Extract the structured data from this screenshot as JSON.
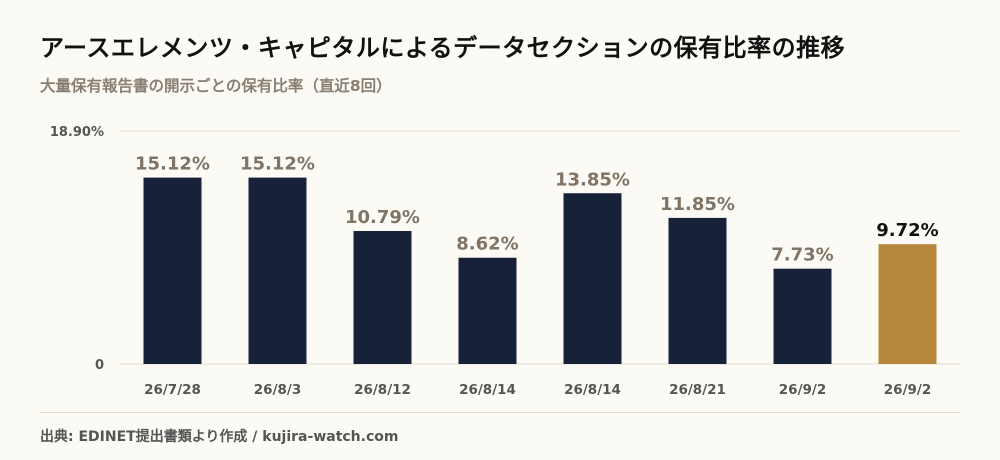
{
  "title": "アースエレメンツ・キャピタルによるデータセクションの保有比率の推移",
  "subtitle": "大量保有報告書の開示ごとの保有比率（直近8回）",
  "source": "出典: EDINET提出書類より作成 / kujira-watch.com",
  "colors": {
    "bar": "#17213a",
    "highlight": "#b5863b",
    "label": "#7f7465",
    "highlight_label": "#111111",
    "axis_text": "#555555",
    "grid": "#e3dccd"
  },
  "chart_data": {
    "type": "bar",
    "categories": [
      "26/7/28",
      "26/8/3",
      "26/8/12",
      "26/8/14",
      "26/8/14",
      "26/8/21",
      "26/9/2",
      "26/9/2"
    ],
    "values": [
      15.12,
      15.12,
      10.79,
      8.62,
      13.85,
      11.85,
      7.73,
      9.72
    ],
    "value_labels": [
      "15.12%",
      "15.12%",
      "10.79%",
      "8.62%",
      "13.85%",
      "11.85%",
      "7.73%",
      "9.72%"
    ],
    "highlight_index": 7,
    "ylim": [
      0,
      18.9
    ],
    "y_tick_labels": [
      "18.90%",
      "0"
    ],
    "grid": true
  }
}
